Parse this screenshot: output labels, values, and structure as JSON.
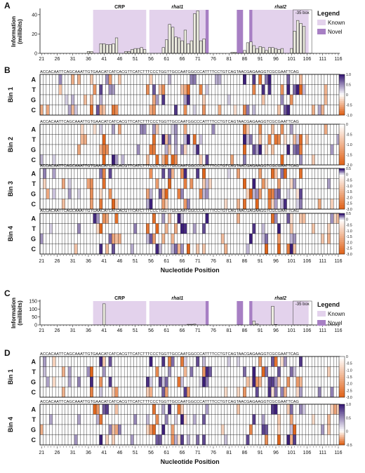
{
  "colors": {
    "known": "#e3d2ec",
    "novel": "#a77fc4",
    "bar_fill": "#ececdf",
    "bar_stroke": "#222222",
    "heat_pos": "#3b1e78",
    "heat_neg": "#e0651c",
    "grid": "#333333"
  },
  "panels": {
    "A": "A",
    "B": "B",
    "C": "C",
    "D": "D"
  },
  "x_title": "Nucleotide Position",
  "y_title_lines": [
    "Information",
    "(millibits)"
  ],
  "legend": {
    "title": "Legend",
    "known": "Known",
    "novel": "Novel"
  },
  "sequence": "ACCACAATTCAGCAAATTGTGAACATCATCACGTTCATCTTTCCCTGGTTGCCAATGGCCCATTTTCCTGTCAGTAACGAGAAGGTCGCGAATTCAG",
  "bases": [
    "A",
    "T",
    "G",
    "C"
  ],
  "chart_data": [
    {
      "type": "bar",
      "panel": "A",
      "title": "",
      "xlabel": "",
      "ylabel": "Information (millibits)",
      "x_ticks": [
        21,
        26,
        31,
        36,
        41,
        46,
        51,
        56,
        61,
        66,
        71,
        76,
        81,
        86,
        91,
        96,
        101,
        106,
        111,
        116
      ],
      "ylim": [
        0,
        45
      ],
      "yticks": [
        0,
        20,
        40
      ],
      "positions_start": 21,
      "values": [
        0,
        0,
        0,
        0,
        0,
        0,
        0,
        0,
        0,
        0,
        0,
        0,
        0,
        0,
        0,
        2,
        2,
        0,
        0,
        10,
        10,
        9,
        9,
        10,
        16,
        0,
        0,
        2,
        2,
        4,
        5,
        5,
        6,
        4,
        0,
        0,
        0,
        0,
        0,
        6,
        14,
        30,
        27,
        17,
        16,
        13,
        24,
        10,
        13,
        41,
        44,
        13,
        15,
        0,
        0,
        0,
        0,
        0,
        0,
        0,
        0,
        1,
        1,
        0,
        0,
        3,
        11,
        12,
        8,
        5,
        7,
        6,
        3,
        6,
        6,
        5,
        4,
        5,
        0,
        0,
        5,
        23,
        34,
        31,
        28,
        0,
        0,
        0,
        0,
        0,
        0,
        0,
        0,
        0,
        0,
        0,
        0
      ],
      "regions": [
        {
          "label": "CRP",
          "type": "Known",
          "start": 37.5,
          "end": 54.5
        },
        {
          "label": "rhaI1",
          "type": "Known",
          "start": 55.5,
          "end": 73.5
        },
        {
          "label": "",
          "type": "Novel",
          "start": 73.5,
          "end": 74.5
        },
        {
          "label": "",
          "type": "Novel",
          "start": 83.5,
          "end": 85.5
        },
        {
          "label": "",
          "type": "Novel",
          "start": 87.5,
          "end": 88.5
        },
        {
          "label": "rhaI2",
          "type": "Known",
          "start": 88.5,
          "end": 106.5
        }
      ],
      "box": {
        "label": "-35 box",
        "start": 101.5,
        "end": 107.5
      }
    },
    {
      "type": "heatmap",
      "panel": "B",
      "rows": [
        "A",
        "T",
        "G",
        "C"
      ],
      "positions": [
        21,
        116
      ],
      "bins": [
        {
          "label": "Bin 1",
          "scale_ticks": [
            "1.0",
            "0.5",
            "0",
            "-0.5",
            "-1.0"
          ]
        },
        {
          "label": "Bin 2",
          "scale_ticks": [
            "0",
            "-0.5",
            "-1.0",
            "-1.5",
            "-2.0"
          ]
        },
        {
          "label": "Bin 3",
          "scale_ticks": [
            "0.5",
            "0",
            "-0.5",
            "-1.0",
            "-1.5",
            "-2.0",
            "-2.5",
            "-3.0"
          ]
        },
        {
          "label": "Bin 4",
          "scale_ticks": [
            "0.5",
            "0",
            "-0.5",
            "-1.0",
            "-1.5",
            "-2.0",
            "-2.5",
            "-3.0"
          ]
        }
      ]
    },
    {
      "type": "bar",
      "panel": "C",
      "title": "",
      "xlabel": "Nucleotide Position",
      "ylabel": "Information (millibits)",
      "x_ticks": [
        21,
        26,
        31,
        36,
        41,
        46,
        51,
        56,
        61,
        66,
        71,
        76,
        81,
        86,
        91,
        96,
        101,
        106,
        111,
        116
      ],
      "ylim": [
        0,
        150
      ],
      "yticks": [
        0,
        50,
        100,
        150
      ],
      "positions_start": 21,
      "values": [
        0,
        0,
        0,
        0,
        0,
        0,
        0,
        0,
        0,
        0,
        0,
        0,
        0,
        0,
        0,
        0,
        0,
        0,
        0,
        0,
        133,
        0,
        0,
        0,
        0,
        0,
        0,
        0,
        0,
        0,
        0,
        0,
        0,
        0,
        0,
        0,
        0,
        0,
        0,
        0,
        0,
        0,
        0,
        0,
        0,
        0,
        0,
        4,
        4,
        5,
        0,
        0,
        0,
        0,
        0,
        0,
        0,
        0,
        0,
        0,
        0,
        0,
        0,
        0,
        0,
        0,
        0,
        0,
        25,
        6,
        0,
        0,
        0,
        0,
        118,
        3,
        0,
        0,
        0,
        0,
        0,
        0,
        0,
        0,
        0,
        0,
        0,
        0,
        0,
        0,
        0,
        0,
        0,
        0,
        0,
        0
      ],
      "regions": [
        {
          "label": "CRP",
          "type": "Known",
          "start": 37.5,
          "end": 54.5
        },
        {
          "label": "rhaI1",
          "type": "Known",
          "start": 55.5,
          "end": 73.5
        },
        {
          "label": "",
          "type": "Novel",
          "start": 73.5,
          "end": 74.5
        },
        {
          "label": "",
          "type": "Novel",
          "start": 83.5,
          "end": 85.5
        },
        {
          "label": "",
          "type": "Novel",
          "start": 87.5,
          "end": 88.5
        },
        {
          "label": "rhaI2",
          "type": "Known",
          "start": 88.5,
          "end": 106.5
        }
      ],
      "box": {
        "label": "-35 box",
        "start": 101.5,
        "end": 107.5
      }
    },
    {
      "type": "heatmap",
      "panel": "D",
      "rows": [
        "A",
        "T",
        "G",
        "C"
      ],
      "positions": [
        21,
        116
      ],
      "bins": [
        {
          "label": "Bin 1",
          "scale_ticks": [
            "0",
            "-0.5",
            "-1.0",
            "-1.5",
            "-2.0",
            "-2.5",
            "-3.0"
          ]
        },
        {
          "label": "Bin 4",
          "scale_ticks": [
            "1.0",
            "0.5",
            "0",
            "-0.5"
          ]
        }
      ]
    }
  ]
}
